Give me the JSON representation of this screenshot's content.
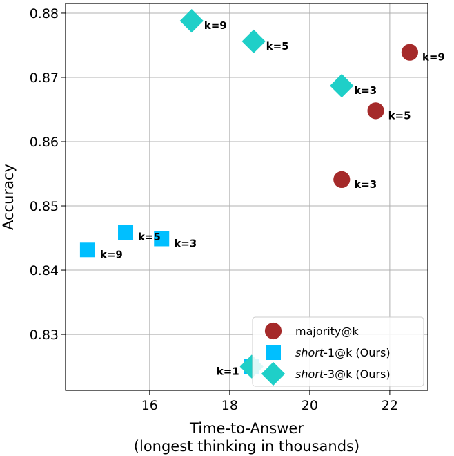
{
  "chart_data": {
    "type": "scatter",
    "xlabel_line1": "Time-to-Answer",
    "xlabel_line2": "(longest thinking in thousands)",
    "ylabel": "Accuracy",
    "xlim": [
      13.9,
      22.95
    ],
    "ylim": [
      0.8213,
      0.8815
    ],
    "x_ticks": [
      16,
      18,
      20,
      22
    ],
    "x_tick_labels": [
      "16",
      "18",
      "20",
      "22"
    ],
    "y_ticks": [
      0.83,
      0.84,
      0.85,
      0.86,
      0.87,
      0.88
    ],
    "y_tick_labels": [
      "0.83",
      "0.84",
      "0.85",
      "0.86",
      "0.87",
      "0.88"
    ],
    "grid": true,
    "legend_position": "lower-right",
    "series": [
      {
        "name": "majority@k",
        "legend_prefix": "majority@k",
        "legend_italic": "",
        "legend_suffix": "",
        "marker": "circle",
        "color": "#a52a2a",
        "points": [
          {
            "x": 20.8,
            "y": 0.8541,
            "label": "k=3",
            "label_side": "right"
          },
          {
            "x": 21.65,
            "y": 0.8648,
            "label": "k=5",
            "label_side": "right"
          },
          {
            "x": 22.5,
            "y": 0.8739,
            "label": "k=9",
            "label_side": "right"
          }
        ]
      },
      {
        "name": "short-1@k (Ours)",
        "legend_prefix": "",
        "legend_italic": "short",
        "legend_suffix": "-1@k  (Ours)",
        "marker": "square",
        "color": "#00bfff",
        "points": [
          {
            "x": 18.55,
            "y": 0.825,
            "label": "k=1",
            "label_side": "left"
          },
          {
            "x": 16.3,
            "y": 0.8449,
            "label": "k=3",
            "label_side": "right"
          },
          {
            "x": 15.4,
            "y": 0.8459,
            "label": "k=5",
            "label_side": "right"
          },
          {
            "x": 14.45,
            "y": 0.8432,
            "label": "k=9",
            "label_side": "right"
          }
        ]
      },
      {
        "name": "short-3@k (Ours)",
        "legend_prefix": "",
        "legend_italic": "short",
        "legend_suffix": "-3@k  (Ours)",
        "marker": "diamond",
        "color": "#1fcfc8",
        "points": [
          {
            "x": 18.55,
            "y": 0.825,
            "label": "",
            "label_side": "right"
          },
          {
            "x": 20.8,
            "y": 0.8687,
            "label": "k=3",
            "label_side": "right"
          },
          {
            "x": 18.6,
            "y": 0.8756,
            "label": "k=5",
            "label_side": "right"
          },
          {
            "x": 17.05,
            "y": 0.8788,
            "label": "k=9",
            "label_side": "right"
          }
        ]
      }
    ]
  }
}
